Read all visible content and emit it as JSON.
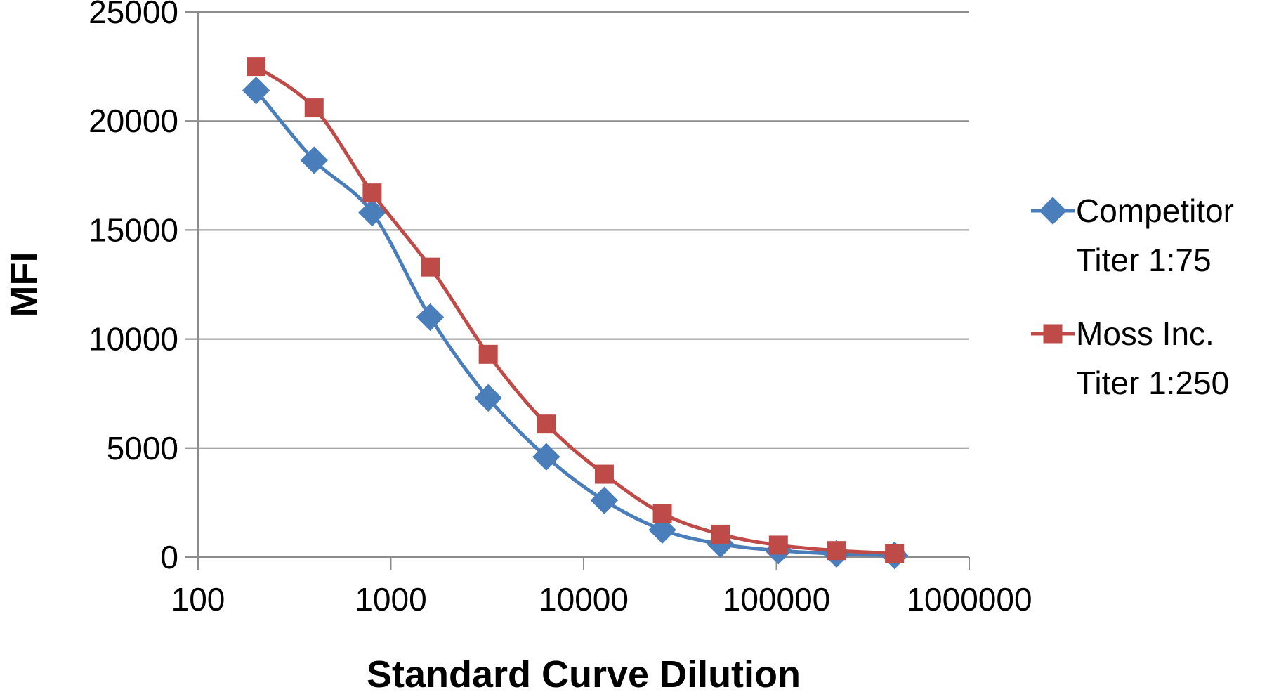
{
  "chart_data": {
    "type": "line",
    "title": "",
    "xlabel": "Standard Curve Dilution",
    "ylabel": "MFI",
    "x_scale": "log",
    "xlim": [
      100,
      1000000
    ],
    "ylim": [
      0,
      25000
    ],
    "x_tick_labels": [
      "100",
      "1000",
      "10000",
      "100000",
      "1000000"
    ],
    "y_tick_labels": [
      "0",
      "5000",
      "10000",
      "15000",
      "20000",
      "25000"
    ],
    "grid": "horizontal",
    "legend_position": "right",
    "x": [
      200,
      400,
      800,
      1600,
      3200,
      6400,
      12800,
      25600,
      51200,
      102400,
      204800,
      409600
    ],
    "series": [
      {
        "name": "Competitor Titer 1:75",
        "legend_lines": [
          "Competitor",
          "Titer 1:75"
        ],
        "color": "#4a7ebb",
        "marker": "diamond",
        "values": [
          21400,
          18200,
          15800,
          11000,
          7300,
          4600,
          2600,
          1250,
          600,
          300,
          150,
          80
        ]
      },
      {
        "name": "Moss Inc. Titer 1:250",
        "legend_lines": [
          "Moss Inc.",
          "Titer 1:250"
        ],
        "color": "#be4b48",
        "marker": "square",
        "values": [
          22500,
          20600,
          16700,
          13300,
          9300,
          6100,
          3800,
          2000,
          1050,
          550,
          300,
          170
        ]
      }
    ]
  }
}
